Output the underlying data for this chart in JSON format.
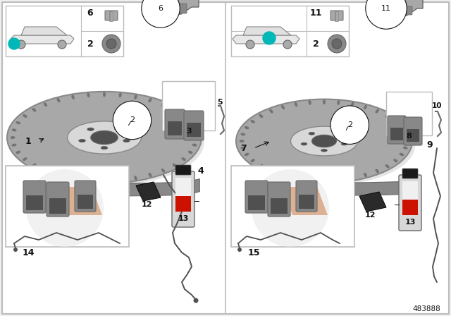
{
  "bg_color": "#f0f0f0",
  "white": "#ffffff",
  "border_color": "#bbbbbb",
  "teal_color": "#00b8b8",
  "part_number": "483888",
  "text_color": "#111111",
  "gray1": "#c0c0c0",
  "gray2": "#a8a8a8",
  "gray3": "#888888",
  "gray4": "#686868",
  "gray5": "#d8d8d8",
  "gray_dark": "#505050",
  "orange_pad": "#c8a060",
  "fig_w": 6.4,
  "fig_h": 4.48,
  "dpi": 100
}
